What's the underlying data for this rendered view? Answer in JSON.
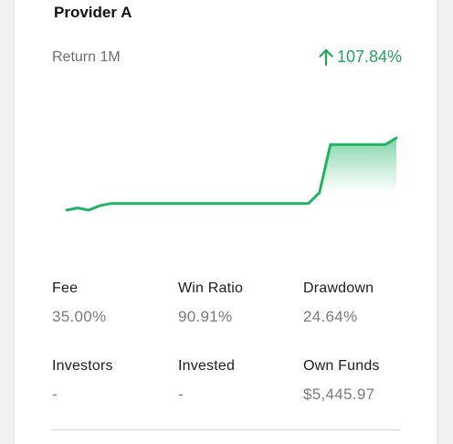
{
  "provider": {
    "name": "Provider A"
  },
  "returns": {
    "label": "Return 1M",
    "value": "107.84%",
    "direction_icon": "arrow-up-icon",
    "color": "#22a65a"
  },
  "chart_data": {
    "type": "area",
    "x": [
      0,
      1,
      2,
      3,
      4,
      5,
      6,
      7,
      8,
      9,
      10,
      11,
      12,
      13,
      14,
      15,
      16,
      17,
      18,
      19,
      20,
      21,
      22,
      23,
      24,
      25,
      26,
      27,
      28,
      29,
      30
    ],
    "values": [
      0.0,
      0.1,
      0.0,
      0.2,
      0.3,
      0.3,
      0.3,
      0.3,
      0.3,
      0.3,
      0.3,
      0.3,
      0.3,
      0.3,
      0.3,
      0.3,
      0.3,
      0.3,
      0.3,
      0.3,
      0.3,
      0.3,
      0.3,
      0.8,
      3.0,
      3.0,
      3.0,
      3.0,
      3.0,
      3.0,
      3.3
    ],
    "color": "#22b365"
  },
  "stats": [
    {
      "label": "Fee",
      "value": "35.00%"
    },
    {
      "label": "Win Ratio",
      "value": "90.91%"
    },
    {
      "label": "Drawdown",
      "value": "24.64%"
    },
    {
      "label": "Investors",
      "value": "-"
    },
    {
      "label": "Invested",
      "value": "-"
    },
    {
      "label": "Own Funds",
      "value": "$5,445.97"
    }
  ]
}
